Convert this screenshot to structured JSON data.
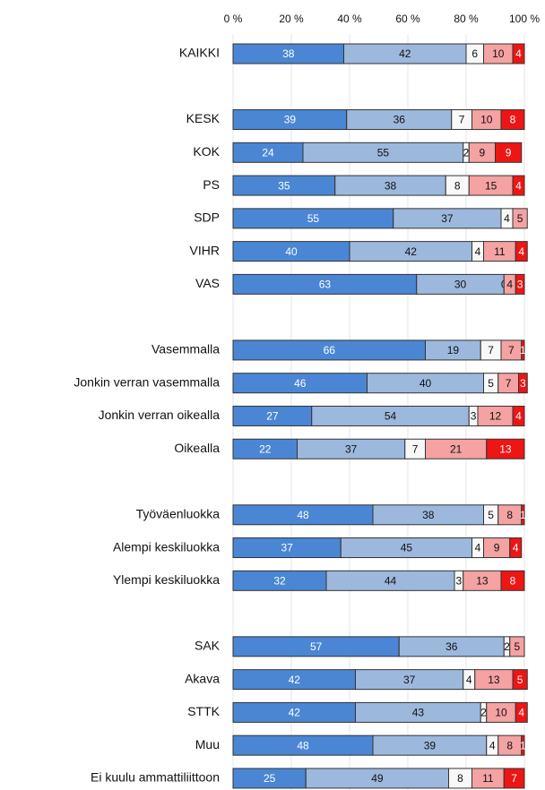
{
  "chart_data": {
    "type": "stacked_bar_horizontal",
    "categories": [
      "KAIKKI",
      null,
      "KESK",
      "KOK",
      "PS",
      "SDP",
      "VIHR",
      "VAS",
      null,
      "Vasemmalla",
      "Jonkin verran vasemmalla",
      "Jonkin verran oikealla",
      "Oikealla",
      null,
      "Työväenluokka",
      "Alempi keskiluokka",
      "Ylempi keskiluokka",
      null,
      "SAK",
      "Akava",
      "STTK",
      "Muu",
      "Ei kuulu ammattiliittoon"
    ],
    "series": [
      {
        "color": "#4a86d4",
        "values": [
          38,
          null,
          39,
          24,
          35,
          55,
          40,
          63,
          null,
          66,
          46,
          27,
          22,
          null,
          48,
          37,
          32,
          null,
          57,
          42,
          42,
          48,
          25
        ]
      },
      {
        "color": "#9cb8dd",
        "values": [
          42,
          null,
          36,
          55,
          38,
          37,
          42,
          30,
          null,
          19,
          40,
          54,
          37,
          null,
          38,
          45,
          44,
          null,
          36,
          37,
          43,
          39,
          49
        ]
      },
      {
        "color": "#f8f8f8",
        "values": [
          6,
          null,
          7,
          2,
          8,
          4,
          4,
          0,
          null,
          7,
          5,
          3,
          7,
          null,
          5,
          4,
          3,
          null,
          2,
          4,
          2,
          4,
          8
        ]
      },
      {
        "color": "#f4a2a2",
        "values": [
          10,
          null,
          10,
          9,
          15,
          5,
          11,
          4,
          null,
          7,
          7,
          12,
          21,
          null,
          8,
          9,
          13,
          null,
          5,
          13,
          10,
          8,
          11
        ]
      },
      {
        "color": "#ee1515",
        "values": [
          4,
          null,
          8,
          9,
          4,
          null,
          4,
          3,
          null,
          1,
          3,
          4,
          13,
          null,
          1,
          4,
          8,
          null,
          null,
          5,
          4,
          1,
          7
        ]
      }
    ],
    "xlim": [
      0,
      100
    ],
    "xticks": [
      {
        "value": 0,
        "label": "0 %"
      },
      {
        "value": 20,
        "label": "20 %"
      },
      {
        "value": 40,
        "label": "40 %"
      },
      {
        "value": 60,
        "label": "60 %"
      },
      {
        "value": 80,
        "label": "80 %"
      },
      {
        "value": 100,
        "label": "100 %"
      }
    ],
    "grid": true
  }
}
